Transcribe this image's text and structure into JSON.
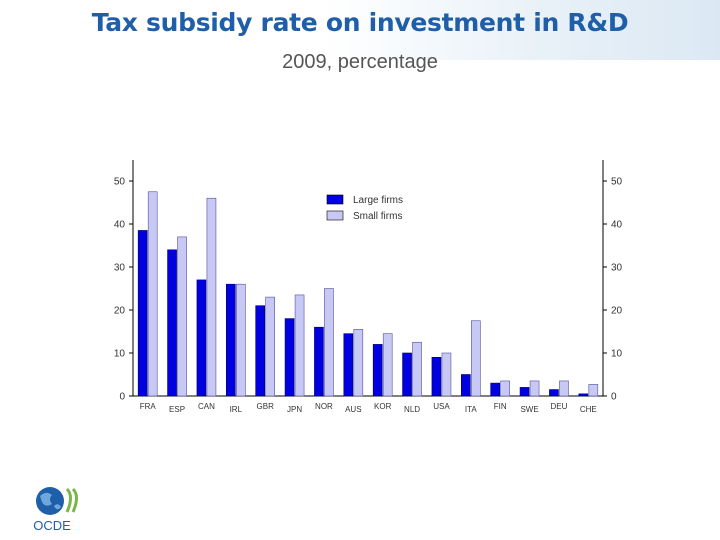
{
  "header": {
    "title": "Tax subsidy rate on investment in R&D",
    "subtitle": "2009, percentage"
  },
  "logo": {
    "text": "OCDE"
  },
  "colors": {
    "large_firms": "#0000e0",
    "small_firms": "#c8c8f5",
    "title": "#1f5ea8"
  },
  "chart_data": {
    "type": "bar",
    "categories": [
      "FRA",
      "ESP",
      "CAN",
      "IRL",
      "GBR",
      "JPN",
      "NOR",
      "AUS",
      "KOR",
      "NLD",
      "USA",
      "ITA",
      "FIN",
      "SWE",
      "DEU",
      "CHE"
    ],
    "series": [
      {
        "name": "Large firms",
        "values": [
          38.5,
          34,
          27,
          26,
          21,
          18,
          16,
          14.5,
          12,
          10,
          9,
          5,
          3,
          2,
          1.5,
          0.5
        ]
      },
      {
        "name": "Small firms",
        "values": [
          47.5,
          37,
          46,
          26,
          23,
          23.5,
          25,
          15.5,
          14.5,
          12.5,
          10,
          17.5,
          3.5,
          3.5,
          3.5,
          2.7
        ]
      }
    ],
    "yticks": [
      "0",
      "10",
      "20",
      "30",
      "40",
      "50"
    ],
    "ylim": [
      0,
      55
    ],
    "legend": {
      "placement": "top-center"
    },
    "grid": false
  }
}
